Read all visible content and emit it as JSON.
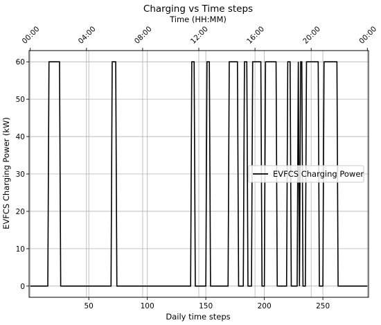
{
  "chart_data": {
    "type": "line",
    "title": "Charging vs Time steps",
    "xlabel": "Daily time steps",
    "ylabel": "EVFCS Charging Power (kW)",
    "top_xlabel": "Time (HH:MM)",
    "xlim": [
      -1,
      289
    ],
    "ylim": [
      -3,
      63
    ],
    "x_ticks": [
      50,
      100,
      150,
      200,
      250
    ],
    "y_ticks": [
      0,
      10,
      20,
      30,
      40,
      50,
      60
    ],
    "top_ticks": [
      {
        "x": 0,
        "label": "00:00"
      },
      {
        "x": 48,
        "label": "04:00"
      },
      {
        "x": 96,
        "label": "08:00"
      },
      {
        "x": 144,
        "label": "12:00"
      },
      {
        "x": 192,
        "label": "16:00"
      },
      {
        "x": 240,
        "label": "20:00"
      },
      {
        "x": 288,
        "label": "00:00"
      }
    ],
    "grid": true,
    "legend_position": "center-right",
    "line_color": "#000000",
    "series": [
      {
        "name": "EVFCS Charging Power",
        "x": [
          0,
          15,
          16,
          25,
          26,
          69,
          70,
          73,
          74,
          137,
          138,
          140,
          141,
          150,
          151,
          153,
          154,
          169,
          170,
          177,
          178,
          182,
          183,
          185,
          186,
          189,
          190,
          197,
          198,
          200,
          201,
          210,
          211,
          219,
          220,
          222,
          223,
          228,
          229,
          230,
          231,
          232,
          233,
          235,
          236,
          246,
          247,
          250,
          251,
          262,
          263,
          271,
          272,
          288
        ],
        "y": [
          0,
          0,
          60,
          60,
          0,
          0,
          60,
          60,
          0,
          0,
          60,
          60,
          0,
          0,
          60,
          60,
          0,
          0,
          60,
          60,
          0,
          0,
          60,
          60,
          0,
          0,
          60,
          60,
          0,
          0,
          60,
          60,
          0,
          0,
          60,
          60,
          0,
          0,
          60,
          0,
          60,
          60,
          0,
          0,
          60,
          60,
          0,
          0,
          60,
          60,
          0,
          0,
          0,
          0
        ]
      }
    ]
  }
}
